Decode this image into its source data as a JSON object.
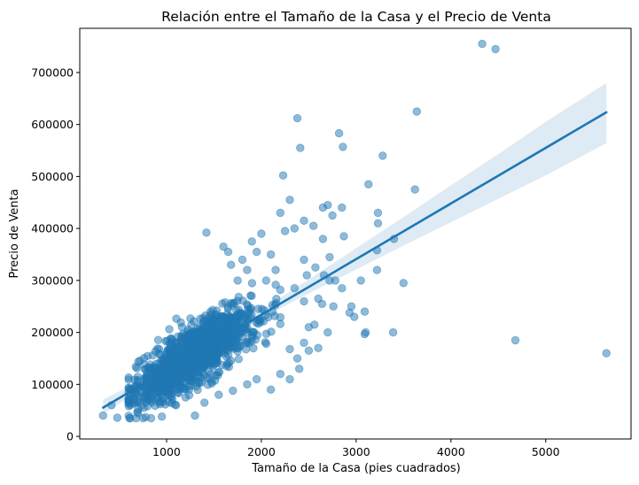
{
  "chart_data": {
    "type": "scatter",
    "title": "Relación entre el Tamaño de la Casa y el Precio de Venta",
    "xlabel": "Tamaño de la Casa (pies cuadrados)",
    "ylabel": "Precio de Venta",
    "xlim": [
      84,
      5900
    ],
    "ylim": [
      -5000,
      785000
    ],
    "xticks": [
      1000,
      2000,
      3000,
      4000,
      5000
    ],
    "xtick_labels": [
      "1000",
      "2000",
      "3000",
      "4000",
      "5000"
    ],
    "yticks": [
      0,
      100000,
      200000,
      300000,
      400000,
      500000,
      600000,
      700000
    ],
    "ytick_labels": [
      "0",
      "100000",
      "200000",
      "300000",
      "400000",
      "500000",
      "600000",
      "700000"
    ],
    "grid": false,
    "colors": {
      "points": "#1f77b4",
      "line": "#1f77b4",
      "band": "#1f77b4"
    },
    "point_alpha": 0.5,
    "cluster": {
      "count": 1300,
      "seed": 7,
      "x_mean": 1300,
      "x_sd": 320,
      "x_min": 600,
      "x_max": 2200,
      "intercept": 20000,
      "slope": 107,
      "noise_sd": 28000,
      "y_min": 35000
    },
    "points": [
      [
        330,
        40000
      ],
      [
        420,
        60000
      ],
      [
        480,
        36000
      ],
      [
        600,
        72000
      ],
      [
        700,
        52000
      ],
      [
        780,
        37000
      ],
      [
        760,
        55000
      ],
      [
        950,
        38000
      ],
      [
        1100,
        60000
      ],
      [
        1300,
        40000
      ],
      [
        1200,
        75000
      ],
      [
        1400,
        65000
      ],
      [
        1550,
        80000
      ],
      [
        1700,
        88000
      ],
      [
        1850,
        100000
      ],
      [
        1950,
        110000
      ],
      [
        2100,
        90000
      ],
      [
        2200,
        120000
      ],
      [
        2300,
        110000
      ],
      [
        2400,
        130000
      ],
      [
        2500,
        165000
      ],
      [
        2600,
        170000
      ],
      [
        2700,
        200000
      ],
      [
        2350,
        400000
      ],
      [
        2250,
        395000
      ],
      [
        2450,
        415000
      ],
      [
        2550,
        405000
      ],
      [
        2650,
        440000
      ],
      [
        2200,
        430000
      ],
      [
        2300,
        455000
      ],
      [
        2380,
        612000
      ],
      [
        2410,
        555000
      ],
      [
        2820,
        583000
      ],
      [
        2860,
        557000
      ],
      [
        2230,
        502000
      ],
      [
        3280,
        540000
      ],
      [
        3130,
        485000
      ],
      [
        3620,
        475000
      ],
      [
        3230,
        430000
      ],
      [
        3230,
        410000
      ],
      [
        3400,
        380000
      ],
      [
        3220,
        358000
      ],
      [
        3220,
        320000
      ],
      [
        3500,
        295000
      ],
      [
        3090,
        240000
      ],
      [
        3100,
        200000
      ],
      [
        3090,
        197000
      ],
      [
        3390,
        200000
      ],
      [
        2930,
        238000
      ],
      [
        2980,
        230000
      ],
      [
        2850,
        285000
      ],
      [
        2780,
        300000
      ],
      [
        2720,
        300000
      ],
      [
        2760,
        250000
      ],
      [
        2640,
        255000
      ],
      [
        2660,
        310000
      ],
      [
        2720,
        345000
      ],
      [
        2570,
        325000
      ],
      [
        2560,
        215000
      ],
      [
        2450,
        180000
      ],
      [
        2380,
        150000
      ],
      [
        2300,
        168000
      ],
      [
        2500,
        210000
      ],
      [
        2600,
        265000
      ],
      [
        2450,
        260000
      ],
      [
        2350,
        285000
      ],
      [
        1800,
        340000
      ],
      [
        1950,
        355000
      ],
      [
        2000,
        390000
      ],
      [
        1900,
        375000
      ],
      [
        2050,
        300000
      ],
      [
        2150,
        320000
      ],
      [
        1750,
        300000
      ],
      [
        1680,
        330000
      ],
      [
        1420,
        392000
      ],
      [
        1600,
        365000
      ],
      [
        1650,
        355000
      ],
      [
        1850,
        320000
      ],
      [
        2100,
        350000
      ],
      [
        2850,
        440000
      ],
      [
        2700,
        445000
      ],
      [
        2750,
        425000
      ],
      [
        2870,
        385000
      ],
      [
        2650,
        380000
      ],
      [
        2450,
        340000
      ],
      [
        2480,
        310000
      ],
      [
        3050,
        300000
      ],
      [
        2950,
        250000
      ],
      [
        4330,
        755000
      ],
      [
        4470,
        745000
      ],
      [
        3640,
        625000
      ],
      [
        4680,
        185000
      ],
      [
        5640,
        160000
      ]
    ],
    "regression": {
      "intercept": 20000,
      "slope": 107,
      "x_range": [
        330,
        5640
      ]
    },
    "confidence_band": {
      "x": [
        330,
        1000,
        1500,
        2000,
        2500,
        3000,
        3500,
        4000,
        4500,
        5000,
        5640
      ],
      "lower": [
        43000,
        122000,
        178000,
        227000,
        275000,
        321000,
        367000,
        412000,
        457000,
        502000,
        564000
      ],
      "upper": [
        71000,
        132000,
        185000,
        243000,
        302000,
        362000,
        422000,
        483000,
        543000,
        605000,
        680000
      ]
    }
  }
}
